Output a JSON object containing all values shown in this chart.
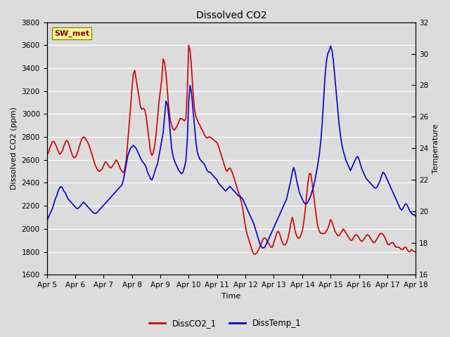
{
  "title": "Dissolved CO2",
  "xlabel": "Time",
  "ylabel_left": "Dissolved CO2 (ppm)",
  "ylabel_right": "Temperature",
  "legend_label": "SW_met",
  "series1_label": "DissCO2_1",
  "series2_label": "DissTemp_1",
  "series1_color": "#cc0000",
  "series2_color": "#0000cc",
  "ylim_left": [
    1600,
    3800
  ],
  "ylim_right": [
    16,
    32
  ],
  "yticks_left": [
    1600,
    1800,
    2000,
    2200,
    2400,
    2600,
    2800,
    3000,
    3200,
    3400,
    3600,
    3800
  ],
  "yticks_right": [
    16,
    18,
    20,
    22,
    24,
    26,
    28,
    30,
    32
  ],
  "bg_color": "#dcdcdc",
  "grid_color": "#ffffff",
  "x_days": [
    5,
    6,
    7,
    8,
    9,
    10,
    11,
    12,
    13,
    14,
    15,
    16,
    17,
    18
  ],
  "co2_data": [
    [
      5.0,
      2640
    ],
    [
      5.05,
      2660
    ],
    [
      5.1,
      2700
    ],
    [
      5.15,
      2730
    ],
    [
      5.2,
      2760
    ],
    [
      5.25,
      2760
    ],
    [
      5.3,
      2740
    ],
    [
      5.35,
      2710
    ],
    [
      5.4,
      2680
    ],
    [
      5.45,
      2650
    ],
    [
      5.5,
      2660
    ],
    [
      5.55,
      2680
    ],
    [
      5.6,
      2720
    ],
    [
      5.65,
      2750
    ],
    [
      5.7,
      2770
    ],
    [
      5.75,
      2760
    ],
    [
      5.8,
      2720
    ],
    [
      5.85,
      2680
    ],
    [
      5.9,
      2640
    ],
    [
      5.95,
      2620
    ],
    [
      6.0,
      2620
    ],
    [
      6.05,
      2640
    ],
    [
      6.1,
      2680
    ],
    [
      6.15,
      2720
    ],
    [
      6.2,
      2760
    ],
    [
      6.25,
      2790
    ],
    [
      6.3,
      2800
    ],
    [
      6.35,
      2790
    ],
    [
      6.4,
      2770
    ],
    [
      6.45,
      2750
    ],
    [
      6.5,
      2720
    ],
    [
      6.55,
      2680
    ],
    [
      6.6,
      2640
    ],
    [
      6.65,
      2600
    ],
    [
      6.7,
      2560
    ],
    [
      6.75,
      2530
    ],
    [
      6.8,
      2510
    ],
    [
      6.85,
      2500
    ],
    [
      6.9,
      2510
    ],
    [
      6.95,
      2520
    ],
    [
      7.0,
      2550
    ],
    [
      7.05,
      2580
    ],
    [
      7.1,
      2580
    ],
    [
      7.15,
      2560
    ],
    [
      7.2,
      2540
    ],
    [
      7.25,
      2530
    ],
    [
      7.3,
      2540
    ],
    [
      7.35,
      2560
    ],
    [
      7.4,
      2580
    ],
    [
      7.45,
      2600
    ],
    [
      7.5,
      2580
    ],
    [
      7.55,
      2550
    ],
    [
      7.6,
      2520
    ],
    [
      7.65,
      2500
    ],
    [
      7.7,
      2490
    ],
    [
      7.75,
      2520
    ],
    [
      7.8,
      2600
    ],
    [
      7.85,
      2750
    ],
    [
      7.9,
      2900
    ],
    [
      7.95,
      3050
    ],
    [
      8.0,
      3220
    ],
    [
      8.05,
      3350
    ],
    [
      8.1,
      3380
    ],
    [
      8.15,
      3300
    ],
    [
      8.2,
      3220
    ],
    [
      8.25,
      3150
    ],
    [
      8.3,
      3060
    ],
    [
      8.35,
      3040
    ],
    [
      8.4,
      3050
    ],
    [
      8.45,
      3040
    ],
    [
      8.5,
      2980
    ],
    [
      8.55,
      2880
    ],
    [
      8.6,
      2780
    ],
    [
      8.65,
      2680
    ],
    [
      8.7,
      2640
    ],
    [
      8.75,
      2660
    ],
    [
      8.8,
      2720
    ],
    [
      8.85,
      2820
    ],
    [
      8.9,
      2960
    ],
    [
      8.95,
      3100
    ],
    [
      9.0,
      3200
    ],
    [
      9.05,
      3300
    ],
    [
      9.1,
      3480
    ],
    [
      9.15,
      3450
    ],
    [
      9.2,
      3350
    ],
    [
      9.25,
      3200
    ],
    [
      9.3,
      3050
    ],
    [
      9.35,
      2950
    ],
    [
      9.4,
      2900
    ],
    [
      9.45,
      2870
    ],
    [
      9.5,
      2860
    ],
    [
      9.55,
      2880
    ],
    [
      9.6,
      2900
    ],
    [
      9.65,
      2930
    ],
    [
      9.7,
      2960
    ],
    [
      9.75,
      2960
    ],
    [
      9.8,
      2950
    ],
    [
      9.85,
      2940
    ],
    [
      9.9,
      2960
    ],
    [
      9.95,
      3200
    ],
    [
      10.0,
      3600
    ],
    [
      10.05,
      3550
    ],
    [
      10.1,
      3400
    ],
    [
      10.15,
      3200
    ],
    [
      10.2,
      3050
    ],
    [
      10.25,
      2980
    ],
    [
      10.3,
      2950
    ],
    [
      10.35,
      2920
    ],
    [
      10.4,
      2900
    ],
    [
      10.45,
      2870
    ],
    [
      10.5,
      2850
    ],
    [
      10.55,
      2820
    ],
    [
      10.6,
      2800
    ],
    [
      10.65,
      2790
    ],
    [
      10.7,
      2800
    ],
    [
      10.75,
      2800
    ],
    [
      10.8,
      2790
    ],
    [
      10.85,
      2780
    ],
    [
      10.9,
      2770
    ],
    [
      10.95,
      2760
    ],
    [
      11.0,
      2750
    ],
    [
      11.05,
      2720
    ],
    [
      11.1,
      2680
    ],
    [
      11.15,
      2640
    ],
    [
      11.2,
      2600
    ],
    [
      11.25,
      2560
    ],
    [
      11.3,
      2520
    ],
    [
      11.35,
      2500
    ],
    [
      11.4,
      2520
    ],
    [
      11.45,
      2530
    ],
    [
      11.5,
      2510
    ],
    [
      11.55,
      2480
    ],
    [
      11.6,
      2440
    ],
    [
      11.65,
      2400
    ],
    [
      11.7,
      2360
    ],
    [
      11.75,
      2320
    ],
    [
      11.8,
      2280
    ],
    [
      11.85,
      2240
    ],
    [
      11.9,
      2180
    ],
    [
      11.95,
      2100
    ],
    [
      12.0,
      2020
    ],
    [
      12.05,
      1960
    ],
    [
      12.1,
      1920
    ],
    [
      12.15,
      1880
    ],
    [
      12.2,
      1840
    ],
    [
      12.25,
      1800
    ],
    [
      12.3,
      1780
    ],
    [
      12.35,
      1780
    ],
    [
      12.4,
      1790
    ],
    [
      12.45,
      1810
    ],
    [
      12.5,
      1840
    ],
    [
      12.55,
      1870
    ],
    [
      12.6,
      1900
    ],
    [
      12.65,
      1920
    ],
    [
      12.7,
      1920
    ],
    [
      12.75,
      1900
    ],
    [
      12.8,
      1880
    ],
    [
      12.85,
      1860
    ],
    [
      12.9,
      1840
    ],
    [
      12.95,
      1840
    ],
    [
      13.0,
      1880
    ],
    [
      13.05,
      1920
    ],
    [
      13.1,
      1960
    ],
    [
      13.15,
      1980
    ],
    [
      13.2,
      1960
    ],
    [
      13.25,
      1920
    ],
    [
      13.3,
      1880
    ],
    [
      13.35,
      1860
    ],
    [
      13.4,
      1860
    ],
    [
      13.45,
      1880
    ],
    [
      13.5,
      1920
    ],
    [
      13.55,
      1980
    ],
    [
      13.6,
      2050
    ],
    [
      13.65,
      2100
    ],
    [
      13.7,
      2050
    ],
    [
      13.75,
      1980
    ],
    [
      13.8,
      1940
    ],
    [
      13.85,
      1920
    ],
    [
      13.9,
      1920
    ],
    [
      13.95,
      1940
    ],
    [
      14.0,
      1980
    ],
    [
      14.05,
      2050
    ],
    [
      14.1,
      2150
    ],
    [
      14.15,
      2280
    ],
    [
      14.2,
      2400
    ],
    [
      14.25,
      2480
    ],
    [
      14.3,
      2480
    ],
    [
      14.35,
      2400
    ],
    [
      14.4,
      2300
    ],
    [
      14.45,
      2200
    ],
    [
      14.5,
      2100
    ],
    [
      14.55,
      2020
    ],
    [
      14.6,
      1980
    ],
    [
      14.65,
      1960
    ],
    [
      14.7,
      1960
    ],
    [
      14.75,
      1960
    ],
    [
      14.8,
      1960
    ],
    [
      14.85,
      1980
    ],
    [
      14.9,
      2000
    ],
    [
      14.95,
      2040
    ],
    [
      15.0,
      2080
    ],
    [
      15.05,
      2060
    ],
    [
      15.1,
      2020
    ],
    [
      15.15,
      1980
    ],
    [
      15.2,
      1960
    ],
    [
      15.25,
      1940
    ],
    [
      15.3,
      1940
    ],
    [
      15.35,
      1960
    ],
    [
      15.4,
      1980
    ],
    [
      15.45,
      2000
    ],
    [
      15.5,
      1980
    ],
    [
      15.55,
      1960
    ],
    [
      15.6,
      1940
    ],
    [
      15.65,
      1920
    ],
    [
      15.7,
      1900
    ],
    [
      15.75,
      1900
    ],
    [
      15.8,
      1920
    ],
    [
      15.85,
      1940
    ],
    [
      15.9,
      1950
    ],
    [
      15.95,
      1940
    ],
    [
      16.0,
      1920
    ],
    [
      16.05,
      1900
    ],
    [
      16.1,
      1890
    ],
    [
      16.15,
      1900
    ],
    [
      16.2,
      1920
    ],
    [
      16.25,
      1940
    ],
    [
      16.3,
      1950
    ],
    [
      16.35,
      1940
    ],
    [
      16.4,
      1920
    ],
    [
      16.45,
      1900
    ],
    [
      16.5,
      1880
    ],
    [
      16.55,
      1880
    ],
    [
      16.6,
      1900
    ],
    [
      16.65,
      1920
    ],
    [
      16.7,
      1940
    ],
    [
      16.75,
      1960
    ],
    [
      16.8,
      1960
    ],
    [
      16.85,
      1950
    ],
    [
      16.9,
      1930
    ],
    [
      16.95,
      1900
    ],
    [
      17.0,
      1870
    ],
    [
      17.05,
      1860
    ],
    [
      17.1,
      1870
    ],
    [
      17.15,
      1880
    ],
    [
      17.2,
      1880
    ],
    [
      17.25,
      1860
    ],
    [
      17.3,
      1840
    ],
    [
      17.35,
      1840
    ],
    [
      17.4,
      1840
    ],
    [
      17.45,
      1830
    ],
    [
      17.5,
      1820
    ],
    [
      17.55,
      1820
    ],
    [
      17.6,
      1840
    ],
    [
      17.65,
      1840
    ],
    [
      17.7,
      1820
    ],
    [
      17.75,
      1800
    ],
    [
      17.8,
      1800
    ],
    [
      17.85,
      1820
    ],
    [
      17.9,
      1810
    ],
    [
      17.95,
      1800
    ],
    [
      18.0,
      1800
    ]
  ],
  "temp_data": [
    [
      5.0,
      19.4
    ],
    [
      5.05,
      19.6
    ],
    [
      5.1,
      19.8
    ],
    [
      5.15,
      20.0
    ],
    [
      5.2,
      20.2
    ],
    [
      5.25,
      20.5
    ],
    [
      5.3,
      20.8
    ],
    [
      5.35,
      21.0
    ],
    [
      5.4,
      21.3
    ],
    [
      5.45,
      21.5
    ],
    [
      5.5,
      21.6
    ],
    [
      5.55,
      21.5
    ],
    [
      5.6,
      21.3
    ],
    [
      5.65,
      21.2
    ],
    [
      5.7,
      21.0
    ],
    [
      5.75,
      20.8
    ],
    [
      5.8,
      20.7
    ],
    [
      5.85,
      20.6
    ],
    [
      5.9,
      20.5
    ],
    [
      5.95,
      20.4
    ],
    [
      6.0,
      20.3
    ],
    [
      6.05,
      20.2
    ],
    [
      6.1,
      20.2
    ],
    [
      6.15,
      20.3
    ],
    [
      6.2,
      20.4
    ],
    [
      6.25,
      20.5
    ],
    [
      6.3,
      20.6
    ],
    [
      6.35,
      20.5
    ],
    [
      6.4,
      20.4
    ],
    [
      6.45,
      20.3
    ],
    [
      6.5,
      20.2
    ],
    [
      6.55,
      20.1
    ],
    [
      6.6,
      20.0
    ],
    [
      6.65,
      19.9
    ],
    [
      6.7,
      19.9
    ],
    [
      6.75,
      19.9
    ],
    [
      6.8,
      20.0
    ],
    [
      6.85,
      20.1
    ],
    [
      6.9,
      20.2
    ],
    [
      6.95,
      20.3
    ],
    [
      7.0,
      20.4
    ],
    [
      7.05,
      20.5
    ],
    [
      7.1,
      20.6
    ],
    [
      7.15,
      20.7
    ],
    [
      7.2,
      20.8
    ],
    [
      7.25,
      20.9
    ],
    [
      7.3,
      21.0
    ],
    [
      7.35,
      21.1
    ],
    [
      7.4,
      21.2
    ],
    [
      7.45,
      21.3
    ],
    [
      7.5,
      21.4
    ],
    [
      7.55,
      21.5
    ],
    [
      7.6,
      21.6
    ],
    [
      7.65,
      21.7
    ],
    [
      7.7,
      22.0
    ],
    [
      7.75,
      22.5
    ],
    [
      7.8,
      23.0
    ],
    [
      7.85,
      23.5
    ],
    [
      7.9,
      23.8
    ],
    [
      7.95,
      24.0
    ],
    [
      8.0,
      24.1
    ],
    [
      8.05,
      24.2
    ],
    [
      8.1,
      24.1
    ],
    [
      8.15,
      24.0
    ],
    [
      8.2,
      23.8
    ],
    [
      8.25,
      23.6
    ],
    [
      8.3,
      23.4
    ],
    [
      8.35,
      23.2
    ],
    [
      8.4,
      23.1
    ],
    [
      8.45,
      23.0
    ],
    [
      8.5,
      22.8
    ],
    [
      8.55,
      22.5
    ],
    [
      8.6,
      22.3
    ],
    [
      8.65,
      22.1
    ],
    [
      8.7,
      22.0
    ],
    [
      8.75,
      22.2
    ],
    [
      8.8,
      22.5
    ],
    [
      8.85,
      22.8
    ],
    [
      8.9,
      23.0
    ],
    [
      8.95,
      23.5
    ],
    [
      9.0,
      24.0
    ],
    [
      9.05,
      24.5
    ],
    [
      9.1,
      25.0
    ],
    [
      9.15,
      26.0
    ],
    [
      9.2,
      27.0
    ],
    [
      9.25,
      26.8
    ],
    [
      9.3,
      26.0
    ],
    [
      9.35,
      25.0
    ],
    [
      9.4,
      24.0
    ],
    [
      9.45,
      23.5
    ],
    [
      9.5,
      23.2
    ],
    [
      9.55,
      23.0
    ],
    [
      9.6,
      22.8
    ],
    [
      9.65,
      22.6
    ],
    [
      9.7,
      22.5
    ],
    [
      9.75,
      22.4
    ],
    [
      9.8,
      22.5
    ],
    [
      9.85,
      22.8
    ],
    [
      9.9,
      23.2
    ],
    [
      9.95,
      24.5
    ],
    [
      10.0,
      27.0
    ],
    [
      10.05,
      28.0
    ],
    [
      10.1,
      27.5
    ],
    [
      10.15,
      26.5
    ],
    [
      10.2,
      25.5
    ],
    [
      10.25,
      24.5
    ],
    [
      10.3,
      23.8
    ],
    [
      10.35,
      23.5
    ],
    [
      10.4,
      23.3
    ],
    [
      10.45,
      23.2
    ],
    [
      10.5,
      23.1
    ],
    [
      10.55,
      23.0
    ],
    [
      10.6,
      22.8
    ],
    [
      10.65,
      22.6
    ],
    [
      10.7,
      22.5
    ],
    [
      10.75,
      22.5
    ],
    [
      10.8,
      22.4
    ],
    [
      10.85,
      22.3
    ],
    [
      10.9,
      22.2
    ],
    [
      10.95,
      22.1
    ],
    [
      11.0,
      22.0
    ],
    [
      11.05,
      21.8
    ],
    [
      11.1,
      21.7
    ],
    [
      11.15,
      21.6
    ],
    [
      11.2,
      21.5
    ],
    [
      11.25,
      21.4
    ],
    [
      11.3,
      21.3
    ],
    [
      11.35,
      21.4
    ],
    [
      11.4,
      21.5
    ],
    [
      11.45,
      21.6
    ],
    [
      11.5,
      21.5
    ],
    [
      11.55,
      21.4
    ],
    [
      11.6,
      21.3
    ],
    [
      11.65,
      21.2
    ],
    [
      11.7,
      21.1
    ],
    [
      11.75,
      21.0
    ],
    [
      11.8,
      21.0
    ],
    [
      11.85,
      20.9
    ],
    [
      11.9,
      20.8
    ],
    [
      11.95,
      20.6
    ],
    [
      12.0,
      20.4
    ],
    [
      12.05,
      20.2
    ],
    [
      12.1,
      20.0
    ],
    [
      12.15,
      19.8
    ],
    [
      12.2,
      19.6
    ],
    [
      12.25,
      19.4
    ],
    [
      12.3,
      19.2
    ],
    [
      12.35,
      18.9
    ],
    [
      12.4,
      18.6
    ],
    [
      12.45,
      18.3
    ],
    [
      12.5,
      18.0
    ],
    [
      12.55,
      17.8
    ],
    [
      12.6,
      17.7
    ],
    [
      12.65,
      17.7
    ],
    [
      12.7,
      17.8
    ],
    [
      12.75,
      18.0
    ],
    [
      12.8,
      18.2
    ],
    [
      12.85,
      18.4
    ],
    [
      12.9,
      18.6
    ],
    [
      12.95,
      18.8
    ],
    [
      13.0,
      19.0
    ],
    [
      13.05,
      19.2
    ],
    [
      13.1,
      19.4
    ],
    [
      13.15,
      19.6
    ],
    [
      13.2,
      19.8
    ],
    [
      13.25,
      20.0
    ],
    [
      13.3,
      20.2
    ],
    [
      13.35,
      20.4
    ],
    [
      13.4,
      20.6
    ],
    [
      13.45,
      20.8
    ],
    [
      13.5,
      21.2
    ],
    [
      13.55,
      21.6
    ],
    [
      13.6,
      22.0
    ],
    [
      13.65,
      22.5
    ],
    [
      13.7,
      22.8
    ],
    [
      13.75,
      22.5
    ],
    [
      13.8,
      22.0
    ],
    [
      13.85,
      21.6
    ],
    [
      13.9,
      21.2
    ],
    [
      13.95,
      21.0
    ],
    [
      14.0,
      20.8
    ],
    [
      14.05,
      20.6
    ],
    [
      14.1,
      20.5
    ],
    [
      14.15,
      20.5
    ],
    [
      14.2,
      20.6
    ],
    [
      14.25,
      20.8
    ],
    [
      14.3,
      21.0
    ],
    [
      14.35,
      21.3
    ],
    [
      14.4,
      21.6
    ],
    [
      14.45,
      22.0
    ],
    [
      14.5,
      22.5
    ],
    [
      14.55,
      23.0
    ],
    [
      14.6,
      23.6
    ],
    [
      14.65,
      24.4
    ],
    [
      14.7,
      25.5
    ],
    [
      14.75,
      27.0
    ],
    [
      14.8,
      28.5
    ],
    [
      14.85,
      29.5
    ],
    [
      14.9,
      30.0
    ],
    [
      14.95,
      30.2
    ],
    [
      15.0,
      30.5
    ],
    [
      15.05,
      30.2
    ],
    [
      15.1,
      29.5
    ],
    [
      15.15,
      28.5
    ],
    [
      15.2,
      27.5
    ],
    [
      15.25,
      26.5
    ],
    [
      15.3,
      25.5
    ],
    [
      15.35,
      24.8
    ],
    [
      15.4,
      24.2
    ],
    [
      15.45,
      23.8
    ],
    [
      15.5,
      23.5
    ],
    [
      15.55,
      23.2
    ],
    [
      15.6,
      23.0
    ],
    [
      15.65,
      22.8
    ],
    [
      15.7,
      22.6
    ],
    [
      15.75,
      22.8
    ],
    [
      15.8,
      23.0
    ],
    [
      15.85,
      23.2
    ],
    [
      15.9,
      23.4
    ],
    [
      15.95,
      23.5
    ],
    [
      16.0,
      23.3
    ],
    [
      16.05,
      23.0
    ],
    [
      16.1,
      22.7
    ],
    [
      16.15,
      22.5
    ],
    [
      16.2,
      22.3
    ],
    [
      16.25,
      22.1
    ],
    [
      16.3,
      22.0
    ],
    [
      16.35,
      21.9
    ],
    [
      16.4,
      21.8
    ],
    [
      16.45,
      21.7
    ],
    [
      16.5,
      21.6
    ],
    [
      16.55,
      21.5
    ],
    [
      16.6,
      21.5
    ],
    [
      16.65,
      21.6
    ],
    [
      16.7,
      21.8
    ],
    [
      16.75,
      22.0
    ],
    [
      16.8,
      22.3
    ],
    [
      16.85,
      22.5
    ],
    [
      16.9,
      22.4
    ],
    [
      16.95,
      22.2
    ],
    [
      17.0,
      22.0
    ],
    [
      17.05,
      21.8
    ],
    [
      17.1,
      21.6
    ],
    [
      17.15,
      21.4
    ],
    [
      17.2,
      21.2
    ],
    [
      17.25,
      21.0
    ],
    [
      17.3,
      20.8
    ],
    [
      17.35,
      20.6
    ],
    [
      17.4,
      20.4
    ],
    [
      17.45,
      20.2
    ],
    [
      17.5,
      20.1
    ],
    [
      17.55,
      20.2
    ],
    [
      17.6,
      20.4
    ],
    [
      17.65,
      20.5
    ],
    [
      17.7,
      20.4
    ],
    [
      17.75,
      20.2
    ],
    [
      17.8,
      20.0
    ],
    [
      17.85,
      19.9
    ],
    [
      17.9,
      19.8
    ],
    [
      17.95,
      19.8
    ],
    [
      18.0,
      19.7
    ]
  ]
}
